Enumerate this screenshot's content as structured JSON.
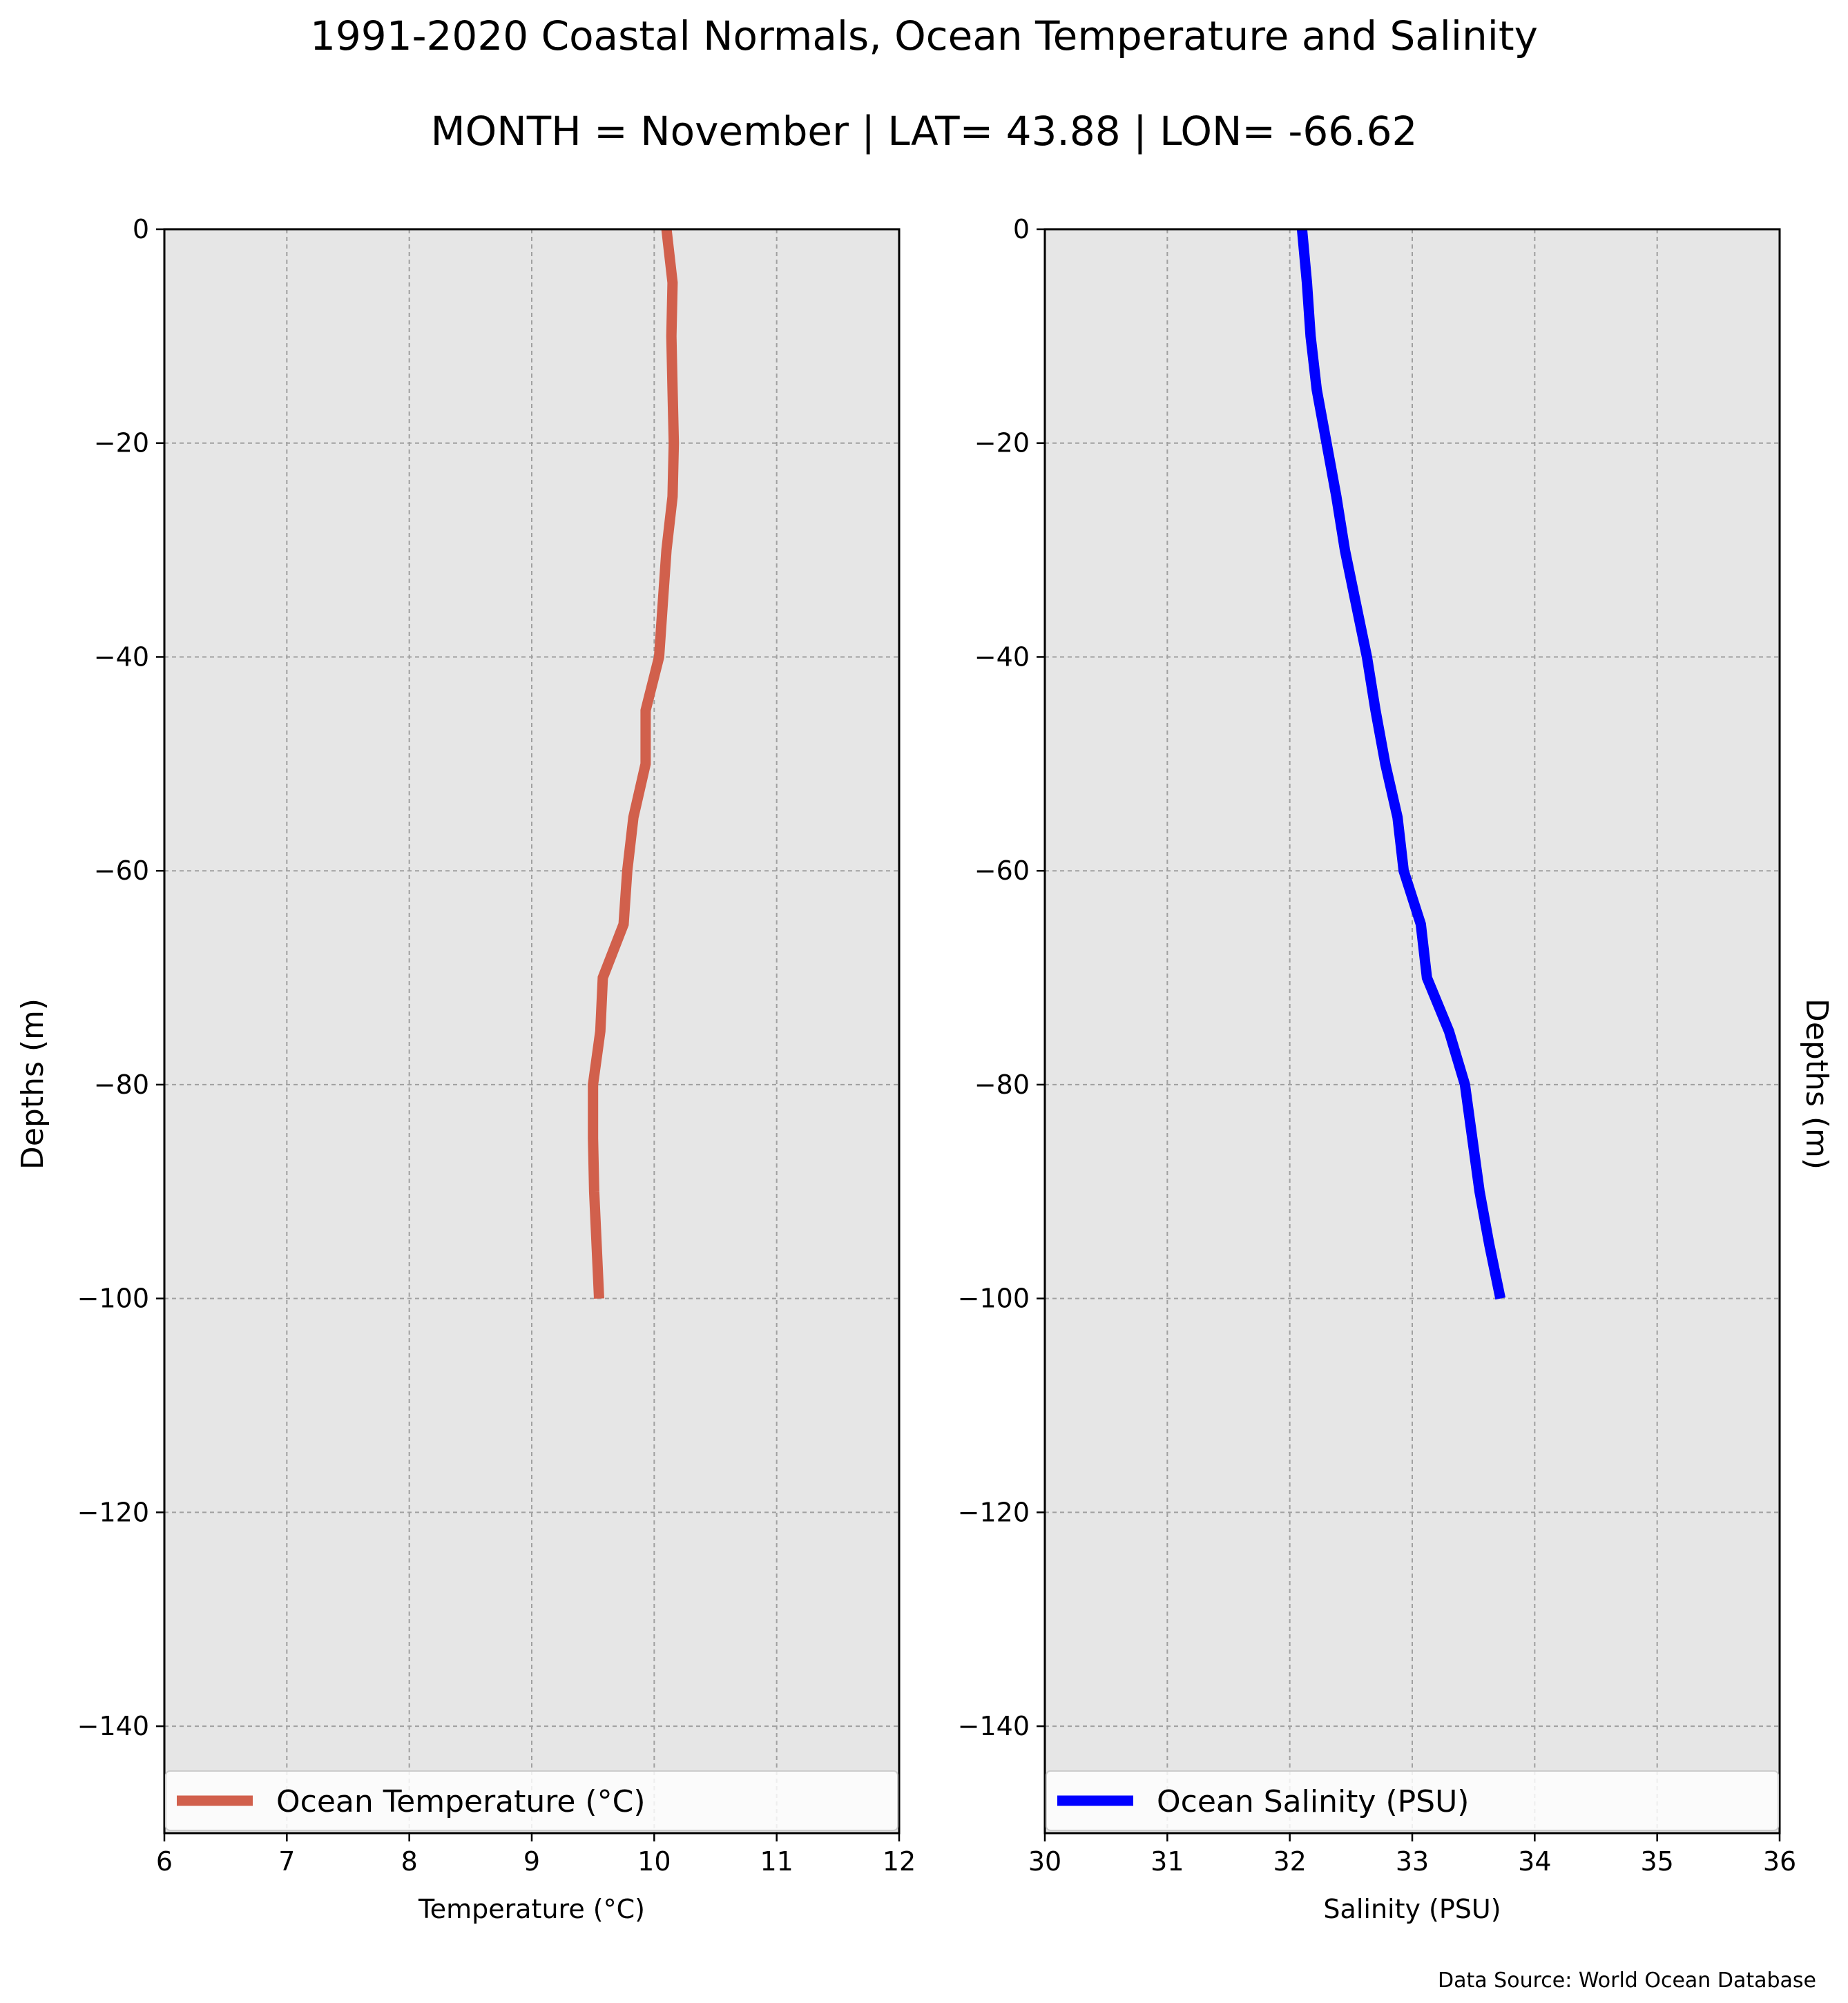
{
  "title": "1991-2020 Coastal Normals, Ocean Temperature and Salinity",
  "subtitle": "MONTH = November | LAT= 43.88 | LON= -66.62",
  "source_note": "Data Source: World Ocean Database",
  "colors": {
    "temperature_line": "#d1604c",
    "salinity_line": "#0000ff",
    "plot_background": "#e6e6e6",
    "grid": "#a0a0a0"
  },
  "chart_data": [
    {
      "type": "line",
      "xlabel": "Temperature ($^\\circ$C)",
      "xlabel_display": "Temperature (°C)",
      "ylabel": "Depths (m)",
      "xlim": [
        6,
        12
      ],
      "ylim": [
        -150,
        0
      ],
      "x_ticks": [
        6,
        7,
        8,
        9,
        10,
        11,
        12
      ],
      "y_ticks": [
        0,
        -20,
        -40,
        -60,
        -80,
        -100,
        -120,
        -140
      ],
      "y_tick_labels": [
        "0",
        "−20",
        "−40",
        "−60",
        "−80",
        "−100",
        "−120",
        "−140"
      ],
      "grid": true,
      "legend_position": "lower center",
      "series": [
        {
          "name": "Ocean Temperature ($^\\circ$C)",
          "name_display": "Ocean Temperature (°C)",
          "color": "#d1604c",
          "x": [
            10.1,
            10.15,
            10.14,
            10.15,
            10.16,
            10.15,
            10.1,
            10.07,
            10.04,
            9.93,
            9.93,
            9.83,
            9.78,
            9.75,
            9.58,
            9.56,
            9.5,
            9.5,
            9.51,
            9.55
          ],
          "y": [
            0,
            -5,
            -10,
            -15,
            -20,
            -25,
            -30,
            -35,
            -40,
            -45,
            -50,
            -55,
            -60,
            -65,
            -70,
            -75,
            -80,
            -85,
            -90,
            -100
          ]
        }
      ]
    },
    {
      "type": "line",
      "xlabel": "Salinity (PSU)",
      "ylabel": "Depths (m)",
      "xlim": [
        30,
        36
      ],
      "ylim": [
        -150,
        0
      ],
      "x_ticks": [
        30,
        31,
        32,
        33,
        34,
        35,
        36
      ],
      "y_ticks": [
        0,
        -20,
        -40,
        -60,
        -80,
        -100,
        -120,
        -140
      ],
      "y_tick_labels": [
        "0",
        "−20",
        "−40",
        "−60",
        "−80",
        "−100",
        "−120",
        "−140"
      ],
      "grid": true,
      "legend_position": "lower center",
      "series": [
        {
          "name": "Ocean Salinity (PSU)",
          "color": "#0000ff",
          "x": [
            32.1,
            32.14,
            32.17,
            32.22,
            32.3,
            32.38,
            32.45,
            32.54,
            32.63,
            32.7,
            32.78,
            32.88,
            32.93,
            33.07,
            33.12,
            33.3,
            33.43,
            33.55,
            33.63,
            33.72
          ],
          "y": [
            0,
            -5,
            -10,
            -15,
            -20,
            -25,
            -30,
            -35,
            -40,
            -45,
            -50,
            -55,
            -60,
            -65,
            -70,
            -75,
            -80,
            -90,
            -95,
            -100
          ]
        }
      ]
    }
  ]
}
